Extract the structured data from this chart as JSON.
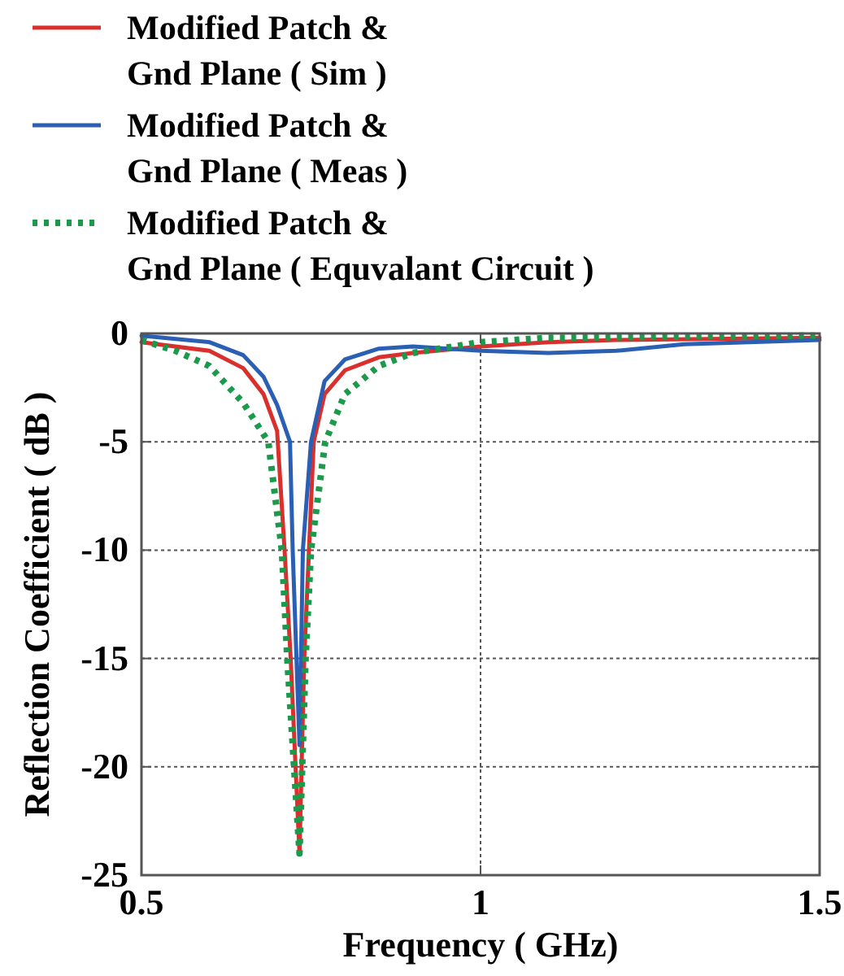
{
  "chart_data": {
    "type": "line",
    "xlabel": "Frequency ( GHz)",
    "ylabel": "Reflection Coefficient ( dB )",
    "xlim": [
      0.5,
      1.5
    ],
    "xticks": [
      0.5,
      1,
      1.5
    ],
    "ylim": [
      -25,
      0
    ],
    "yticks": [
      -25,
      -20,
      -15,
      -10,
      -5,
      0
    ],
    "grid": true,
    "legend": "top",
    "series": [
      {
        "name": "Modified Patch & Gnd Plane ( Sim )",
        "color": "#d9302e",
        "line_style": "solid",
        "x": [
          0.5,
          0.6,
          0.65,
          0.68,
          0.7,
          0.711,
          0.72,
          0.733,
          0.74,
          0.747,
          0.754,
          0.77,
          0.8,
          0.85,
          0.9,
          1.0,
          1.1,
          1.2,
          1.5
        ],
        "values": [
          -0.4,
          -0.8,
          -1.6,
          -2.8,
          -4.5,
          -10,
          -15,
          -24,
          -15,
          -10,
          -5,
          -2.8,
          -1.7,
          -1.1,
          -0.9,
          -0.6,
          -0.4,
          -0.3,
          -0.2
        ]
      },
      {
        "name": "Modified Patch & Gnd Plane ( Meas )",
        "color": "#2b5fb4",
        "line_style": "solid",
        "x": [
          0.5,
          0.6,
          0.65,
          0.68,
          0.7,
          0.719,
          0.723,
          0.733,
          0.738,
          0.75,
          0.77,
          0.8,
          0.85,
          0.9,
          1.0,
          1.1,
          1.2,
          1.3,
          1.5
        ],
        "values": [
          -0.1,
          -0.4,
          -1.0,
          -2.0,
          -3.3,
          -5,
          -10,
          -19,
          -10,
          -5,
          -2.2,
          -1.2,
          -0.7,
          -0.6,
          -0.8,
          -0.9,
          -0.8,
          -0.5,
          -0.3
        ]
      },
      {
        "name": "Modified Patch & Gnd Plane ( Equvalant Circuit )",
        "color": "#1a9a4a",
        "line_style": "dotted",
        "x": [
          0.5,
          0.55,
          0.6,
          0.65,
          0.687,
          0.707,
          0.715,
          0.725,
          0.733,
          0.737,
          0.742,
          0.75,
          0.771,
          0.8,
          0.85,
          0.9,
          1.0,
          1.1,
          1.5
        ],
        "values": [
          -0.3,
          -0.8,
          -1.5,
          -3.2,
          -5,
          -10,
          -15,
          -20,
          -24,
          -20,
          -15,
          -10,
          -5,
          -2.8,
          -1.5,
          -0.9,
          -0.4,
          -0.2,
          -0.1
        ]
      }
    ]
  }
}
